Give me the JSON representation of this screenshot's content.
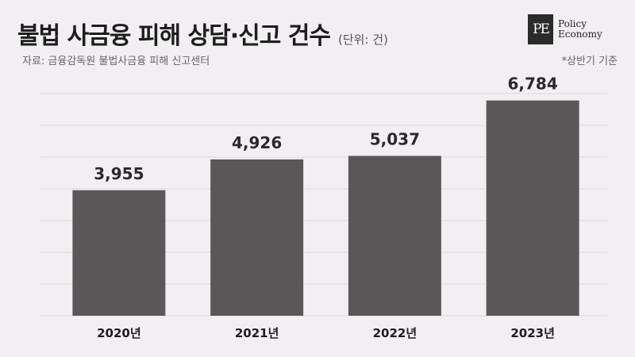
{
  "header": {
    "title": "불법 사금융 피해 상담·신고 건수",
    "unit": "(단위: 건)",
    "source": "자료: 금융감독원 불법사금융 피해 신고센터",
    "footnote": "*상반기 기준"
  },
  "logo": {
    "mark": "PE",
    "line1": "Policy",
    "line2": "Economy"
  },
  "colors": {
    "bar": "#595758",
    "grid": "#dcdadc",
    "label": "#2a2a2a"
  },
  "chart_data": {
    "type": "bar",
    "categories": [
      "2020년",
      "2021년",
      "2022년",
      "2023년"
    ],
    "values": [
      3955,
      4926,
      5037,
      6784
    ],
    "value_labels": [
      "3,955",
      "4,926",
      "5,037",
      "6,784"
    ],
    "title": "불법 사금융 피해 상담·신고 건수",
    "xlabel": "",
    "ylabel": "",
    "ylim": [
      0,
      7000
    ],
    "grid": true,
    "legend": "none"
  }
}
